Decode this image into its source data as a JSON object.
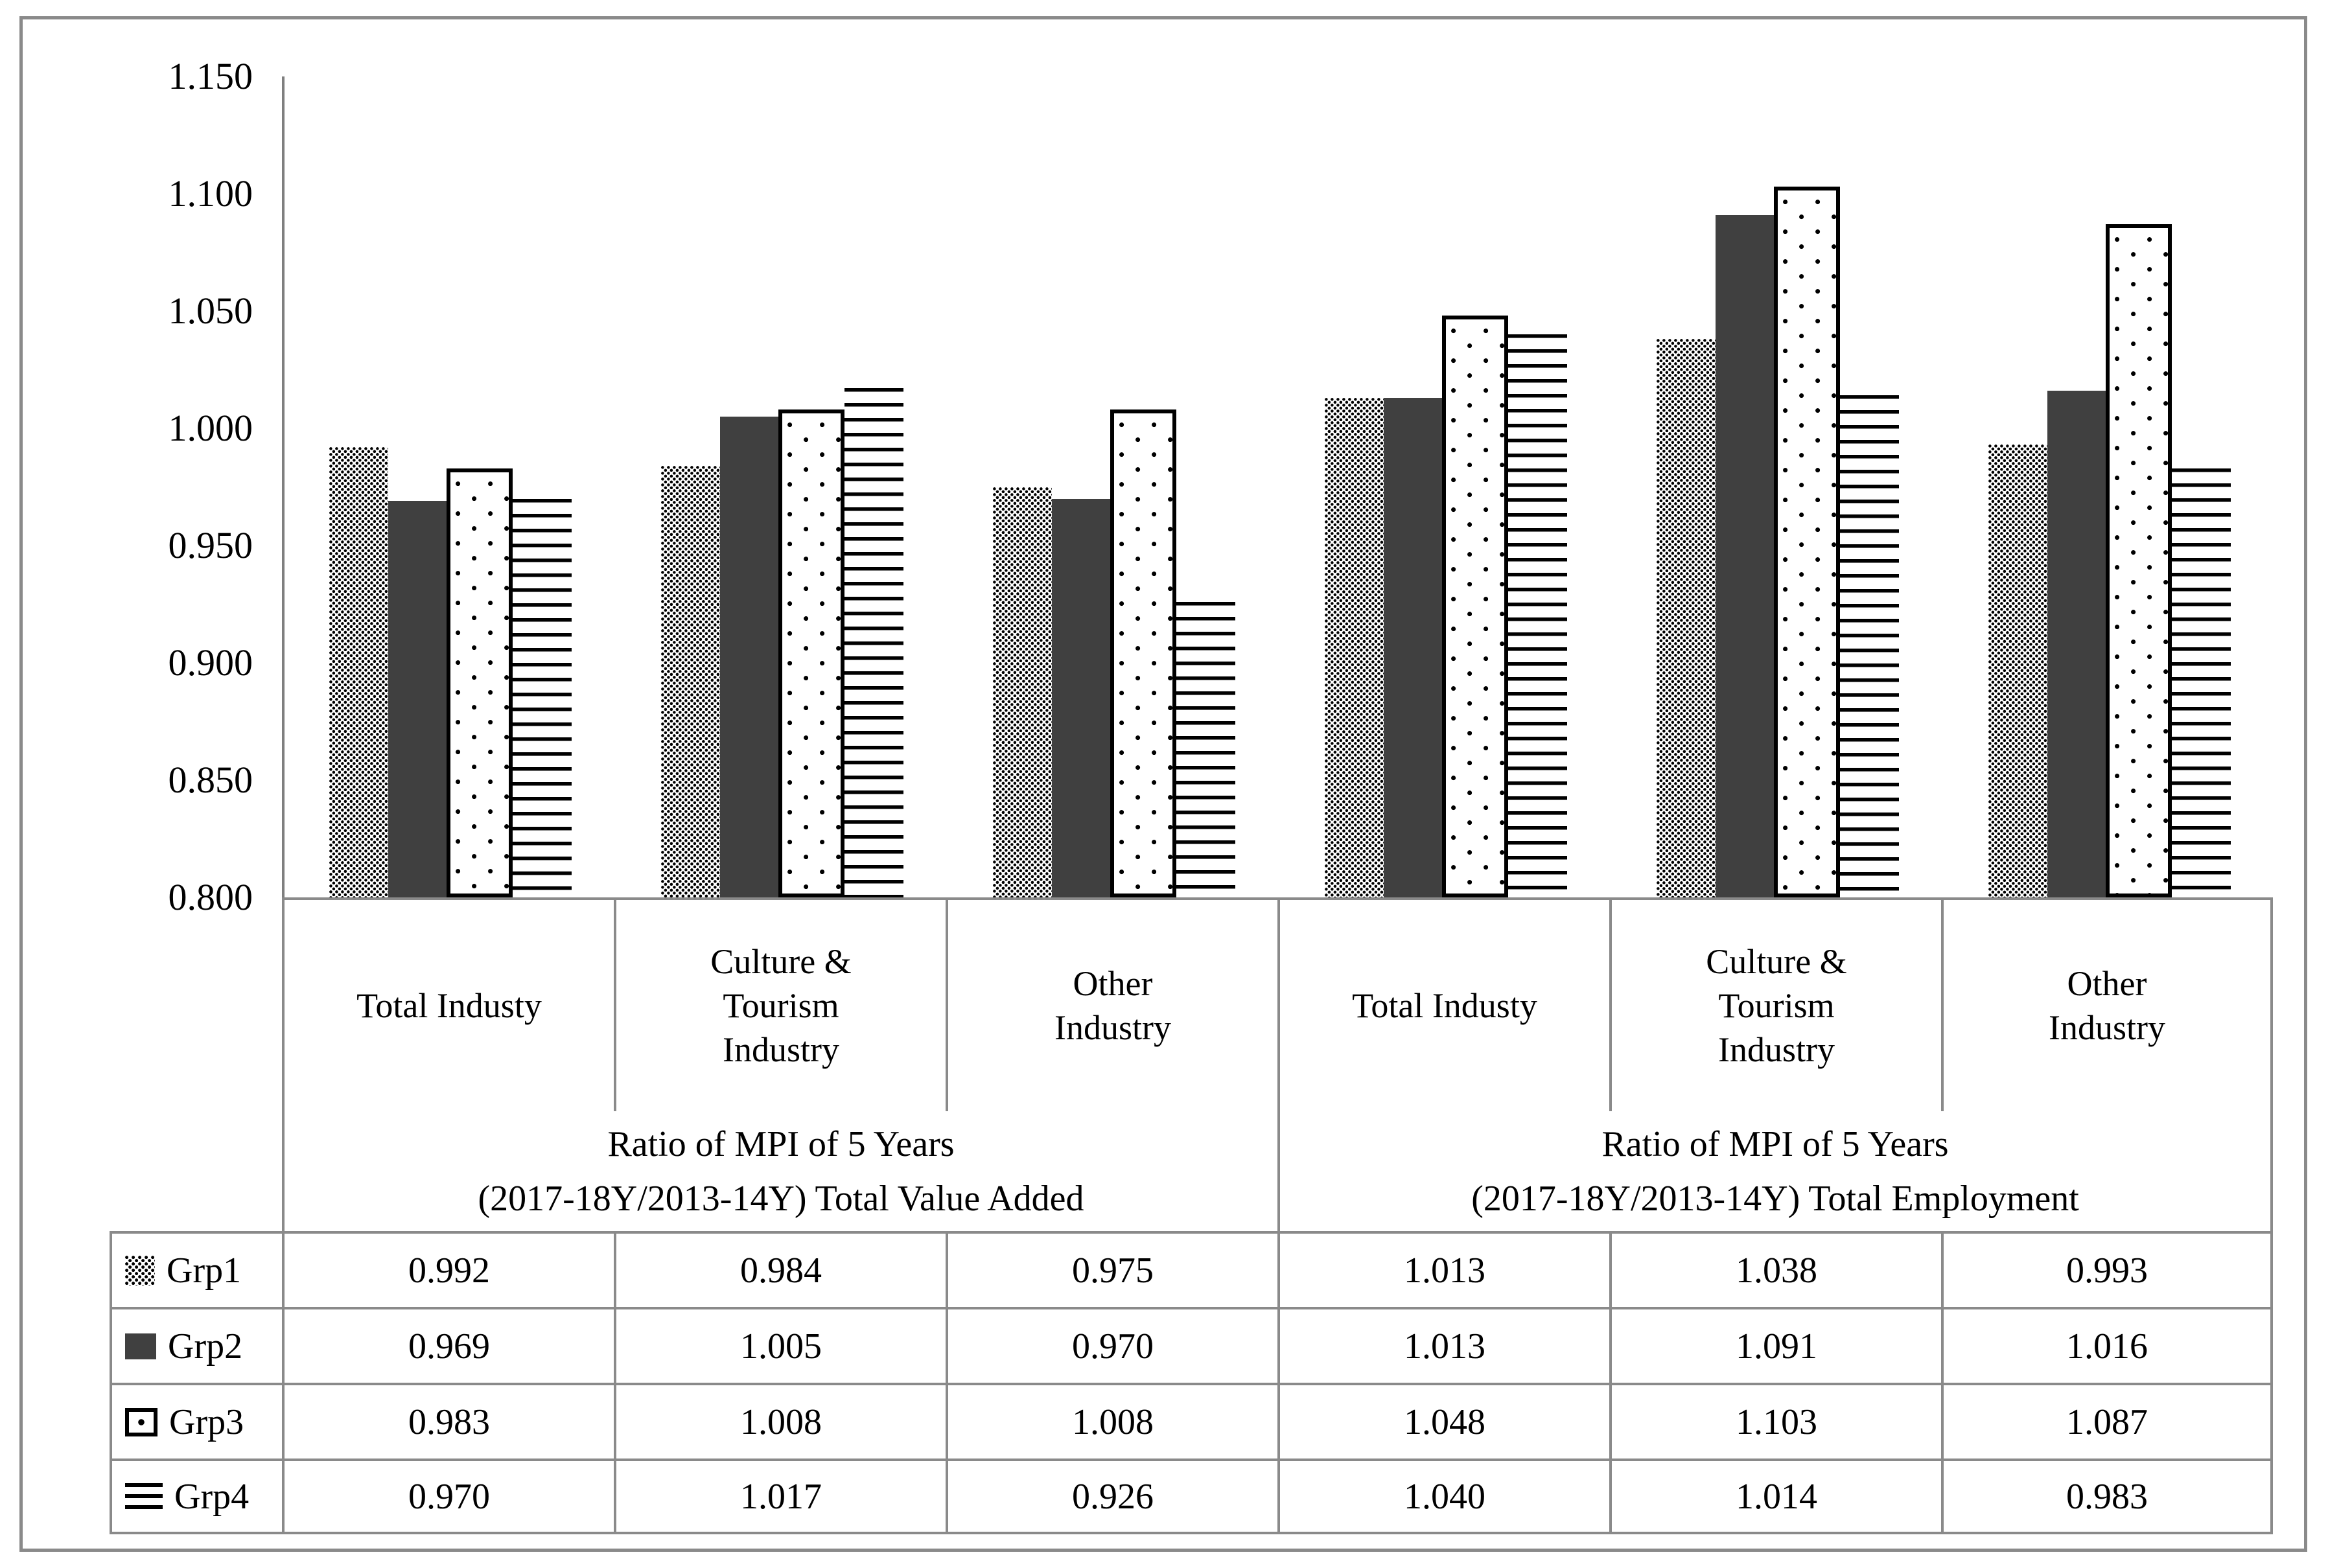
{
  "chart_data": {
    "type": "bar",
    "title": "",
    "gridlines": false,
    "legend_position": "table-left-column",
    "y_axis": {
      "min": 0.8,
      "max": 1.15,
      "tick_labels": [
        "1.150",
        "1.100",
        "1.050",
        "1.000",
        "0.950",
        "0.900",
        "0.850",
        "0.800"
      ]
    },
    "categories": [
      {
        "lines": [
          "Total Industy"
        ]
      },
      {
        "lines": [
          "Culture &",
          "Tourism",
          "Industry"
        ]
      },
      {
        "lines": [
          "Other",
          "Industry"
        ]
      },
      {
        "lines": [
          "Total Industy"
        ]
      },
      {
        "lines": [
          "Culture &",
          "Tourism",
          "Industry"
        ]
      },
      {
        "lines": [
          "Other",
          "Industry"
        ]
      }
    ],
    "group_headers": [
      {
        "lines": [
          "Ratio of MPI of 5 Years",
          "(2017-18Y/2013-14Y) Total Value Added"
        ],
        "span": 3
      },
      {
        "lines": [
          "Ratio of MPI of 5 Years",
          "(2017-18Y/2013-14Y) Total Employment"
        ],
        "span": 3
      }
    ],
    "series": [
      {
        "name": "Grp1",
        "pattern": "fine-dots",
        "values": [
          0.992,
          0.984,
          0.975,
          1.013,
          1.038,
          0.993
        ]
      },
      {
        "name": "Grp2",
        "pattern": "solid",
        "values": [
          0.969,
          1.005,
          0.97,
          1.013,
          1.091,
          1.016
        ]
      },
      {
        "name": "Grp3",
        "pattern": "sparse-dots",
        "values": [
          0.983,
          1.008,
          1.008,
          1.048,
          1.103,
          1.087
        ]
      },
      {
        "name": "Grp4",
        "pattern": "h-lines",
        "values": [
          0.97,
          1.017,
          0.926,
          1.04,
          1.014,
          0.983
        ]
      }
    ],
    "value_decimals": 3,
    "colors": {
      "solid_bar": "#404040",
      "pattern_ink": "#000000",
      "table_border": "#8a8a8a",
      "axis_line": "#7f7f7f"
    }
  }
}
